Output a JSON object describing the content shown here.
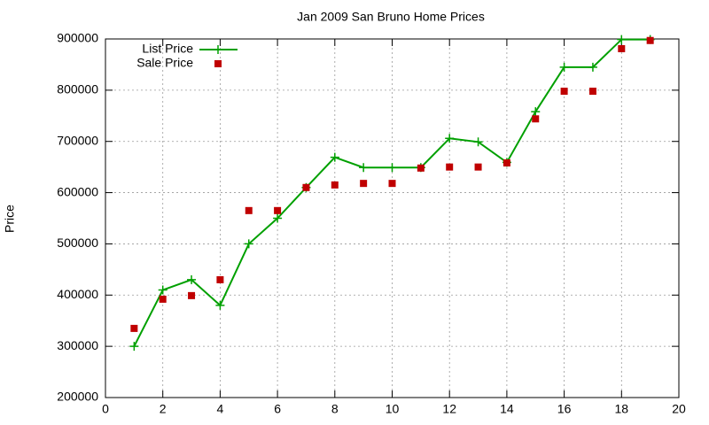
{
  "chart_data": {
    "type": "line",
    "title": "Jan 2009 San Bruno Home Prices",
    "y_label": "Price",
    "x": [
      1,
      2,
      3,
      4,
      5,
      6,
      7,
      8,
      9,
      10,
      11,
      12,
      13,
      14,
      15,
      16,
      17,
      18,
      19
    ],
    "series": [
      {
        "name": "List Price",
        "color": "#00a000",
        "marker": "plus",
        "line": true,
        "values": [
          300000,
          410000,
          430000,
          380000,
          500000,
          550000,
          610000,
          669000,
          649000,
          649000,
          649000,
          706000,
          699000,
          659000,
          758000,
          845000,
          845000,
          899000,
          899000
        ]
      },
      {
        "name": "Sale Price",
        "color": "#c00000",
        "marker": "square",
        "line": false,
        "values": [
          335000,
          392000,
          399000,
          430000,
          565000,
          565000,
          610000,
          615000,
          618000,
          618000,
          648000,
          650000,
          650000,
          658000,
          744000,
          798000,
          798000,
          881000,
          897000
        ]
      }
    ],
    "xlim": [
      0,
      20
    ],
    "xticks": [
      0,
      2,
      4,
      6,
      8,
      10,
      12,
      14,
      16,
      18,
      20
    ],
    "ylim": [
      200000,
      900000
    ],
    "yticks": [
      200000,
      300000,
      400000,
      500000,
      600000,
      700000,
      800000,
      900000
    ],
    "grid": true,
    "legend": "top-left"
  }
}
